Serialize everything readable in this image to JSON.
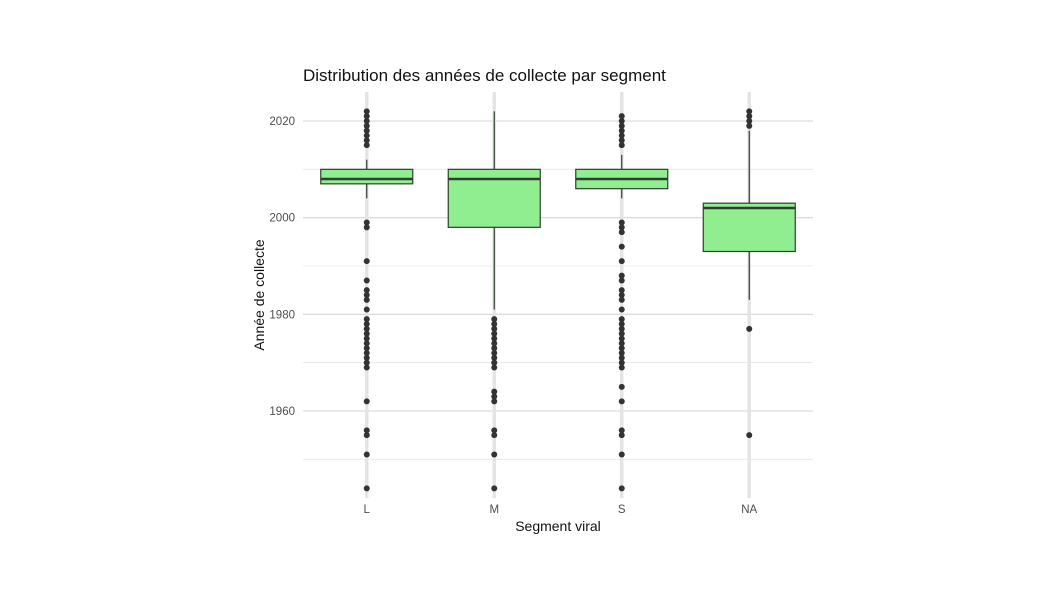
{
  "chart_data": {
    "type": "boxplot",
    "title": "Distribution des années de collecte par segment",
    "xlabel": "Segment viral",
    "ylabel": "Année de collecte",
    "ylim": [
      1942,
      2026
    ],
    "yticks": [
      1960,
      1980,
      2000,
      2020
    ],
    "grid": true,
    "fill_color": "#90EE90",
    "line_color": "#2f3f2f",
    "point_color": "#333333",
    "categories": [
      "L",
      "M",
      "S",
      "NA"
    ],
    "boxes": [
      {
        "category": "L",
        "q1": 2007,
        "median": 2008,
        "q3": 2010,
        "whisker_low": 2004,
        "whisker_high": 2012,
        "outliers": [
          1944,
          1951,
          1955,
          1956,
          1962,
          1969,
          1970,
          1971,
          1972,
          1973,
          1974,
          1975,
          1976,
          1977,
          1978,
          1979,
          1981,
          1983,
          1984,
          1985,
          1987,
          1991,
          1998,
          1999,
          2015,
          2016,
          2017,
          2018,
          2019,
          2020,
          2021,
          2022
        ]
      },
      {
        "category": "M",
        "q1": 1998,
        "median": 2008,
        "q3": 2010,
        "whisker_low": 1981,
        "whisker_high": 2022,
        "outliers": [
          1944,
          1951,
          1955,
          1956,
          1962,
          1963,
          1964,
          1969,
          1970,
          1971,
          1972,
          1973,
          1974,
          1975,
          1976,
          1977,
          1978,
          1979
        ]
      },
      {
        "category": "S",
        "q1": 2006,
        "median": 2008,
        "q3": 2010,
        "whisker_low": 2004,
        "whisker_high": 2013,
        "outliers": [
          1944,
          1951,
          1955,
          1956,
          1962,
          1965,
          1969,
          1970,
          1971,
          1972,
          1973,
          1974,
          1975,
          1976,
          1977,
          1978,
          1979,
          1981,
          1983,
          1984,
          1985,
          1987,
          1988,
          1991,
          1994,
          1997,
          1998,
          1999,
          2015,
          2016,
          2017,
          2018,
          2019,
          2020,
          2021
        ]
      },
      {
        "category": "NA",
        "q1": 1993,
        "median": 2002,
        "q3": 2003,
        "whisker_low": 1983,
        "whisker_high": 2018,
        "outliers": [
          1955,
          1977,
          2019,
          2020,
          2021,
          2022
        ]
      }
    ]
  }
}
